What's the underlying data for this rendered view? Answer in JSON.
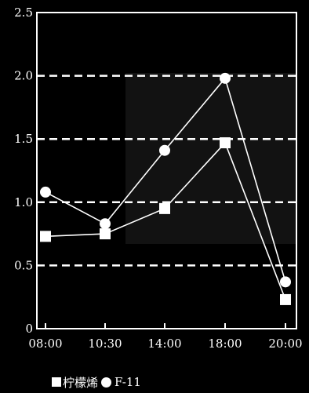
{
  "chart_data": {
    "type": "line",
    "categories": [
      "08:00",
      "10:30",
      "14:00",
      "18:00",
      "20:00"
    ],
    "series": [
      {
        "name": "柠檬烯",
        "marker": "square",
        "values": [
          0.73,
          0.75,
          0.95,
          1.47,
          0.23
        ]
      },
      {
        "name": "F-11",
        "marker": "circle",
        "values": [
          1.08,
          0.83,
          1.41,
          1.98,
          0.37
        ]
      }
    ],
    "yticks": [
      "0",
      "0.5",
      "1.0",
      "1.5",
      "2.0",
      "2.5"
    ],
    "ytick_values": [
      0,
      0.5,
      1.0,
      1.5,
      2.0,
      2.5
    ],
    "ylim": [
      0,
      2.5
    ],
    "gridlines": [
      0.5,
      1.0,
      1.5,
      2.0
    ],
    "grid": "horizontal-dashed",
    "legend": "bottom-left",
    "title": "",
    "xlabel": "",
    "ylabel": "",
    "colors": {
      "background": "#000000",
      "foreground": "#ffffff"
    }
  }
}
